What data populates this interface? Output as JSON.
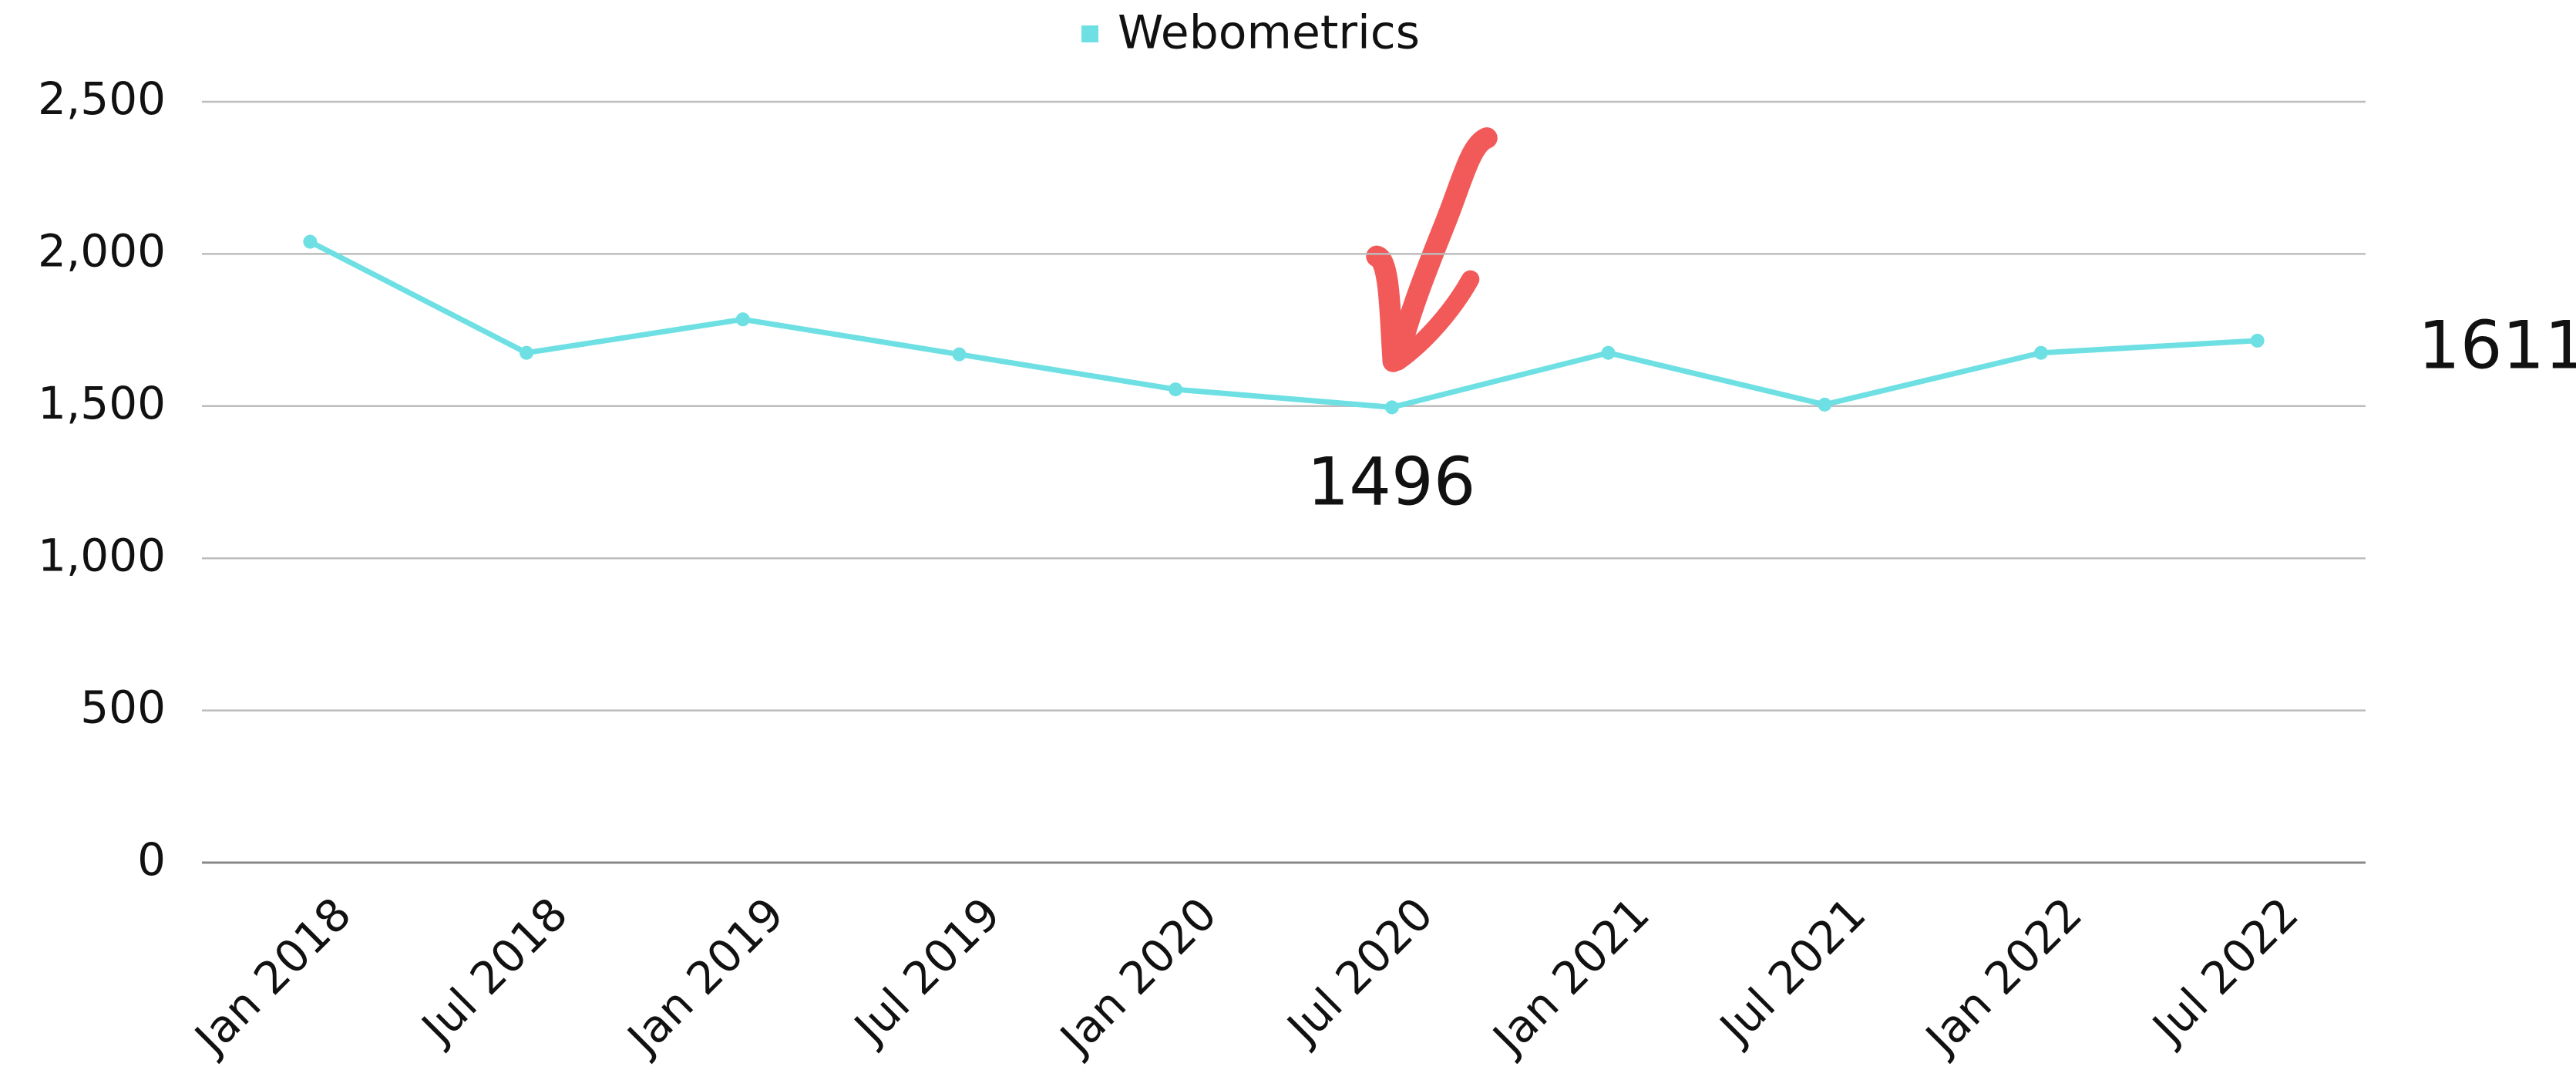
{
  "chart_data": {
    "type": "line",
    "categories": [
      "Jan 2018",
      "Jul 2018",
      "Jan 2019",
      "Jul 2019",
      "Jan 2020",
      "Jul 2020",
      "Jan 2021",
      "Jul 2021",
      "Jan 2022",
      "Jul 2022"
    ],
    "series": [
      {
        "name": "Webometrics",
        "color": "#6ee0e4",
        "values": [
          2040,
          1675,
          1785,
          1670,
          1555,
          1496,
          1675,
          1505,
          1675,
          1715
        ]
      }
    ],
    "ylim": [
      0,
      2500
    ],
    "yticks": [
      0,
      500,
      {
        "value": 1000,
        "label": "1,000"
      },
      {
        "value": 1500,
        "label": "1,500"
      },
      {
        "value": 2000,
        "label": "2,000"
      },
      {
        "value": 2500,
        "label": "2,500"
      }
    ],
    "grid": true,
    "legend": "top",
    "annotations": [
      "1496",
      "1611"
    ]
  }
}
